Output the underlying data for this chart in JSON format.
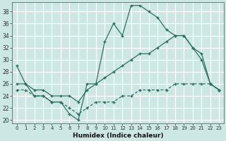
{
  "xlabel": "Humidex (Indice chaleur)",
  "bg_color": "#cde8e4",
  "grid_color": "#ffffff",
  "line_color": "#2e6e62",
  "xlim": [
    -0.5,
    23.5
  ],
  "ylim": [
    19.5,
    39.5
  ],
  "yticks": [
    20,
    22,
    24,
    26,
    28,
    30,
    32,
    34,
    36,
    38
  ],
  "xticks": [
    0,
    1,
    2,
    3,
    4,
    5,
    6,
    7,
    8,
    9,
    10,
    11,
    12,
    13,
    14,
    15,
    16,
    17,
    18,
    19,
    20,
    21,
    22,
    23
  ],
  "line1_x": [
    0,
    1,
    2,
    3,
    4,
    5,
    6,
    7,
    8,
    9,
    10,
    11,
    12,
    13,
    14,
    15,
    16,
    17,
    18,
    19,
    20,
    21,
    22,
    23
  ],
  "line1_y": [
    29,
    26,
    24,
    24,
    23,
    23,
    21,
    20,
    26,
    26,
    33,
    36,
    34,
    39,
    39,
    38,
    37,
    35,
    34,
    34,
    32,
    30,
    26,
    25
  ],
  "line2_x": [
    0,
    1,
    2,
    3,
    4,
    5,
    6,
    7,
    8,
    9,
    10,
    11,
    12,
    13,
    14,
    15,
    16,
    17,
    18,
    19,
    20,
    21,
    22,
    23
  ],
  "line2_y": [
    26,
    26,
    25,
    25,
    24,
    24,
    24,
    23,
    25,
    26,
    27,
    28,
    29,
    30,
    31,
    31,
    32,
    33,
    34,
    34,
    32,
    31,
    26,
    25
  ],
  "line3_x": [
    0,
    1,
    2,
    3,
    4,
    5,
    6,
    7,
    8,
    9,
    10,
    11,
    12,
    13,
    14,
    15,
    16,
    17,
    18,
    19,
    20,
    21,
    22,
    23
  ],
  "line3_y": [
    25,
    25,
    24,
    24,
    23,
    23,
    22,
    21,
    22,
    23,
    23,
    23,
    24,
    24,
    25,
    25,
    25,
    25,
    26,
    26,
    26,
    26,
    26,
    25
  ]
}
